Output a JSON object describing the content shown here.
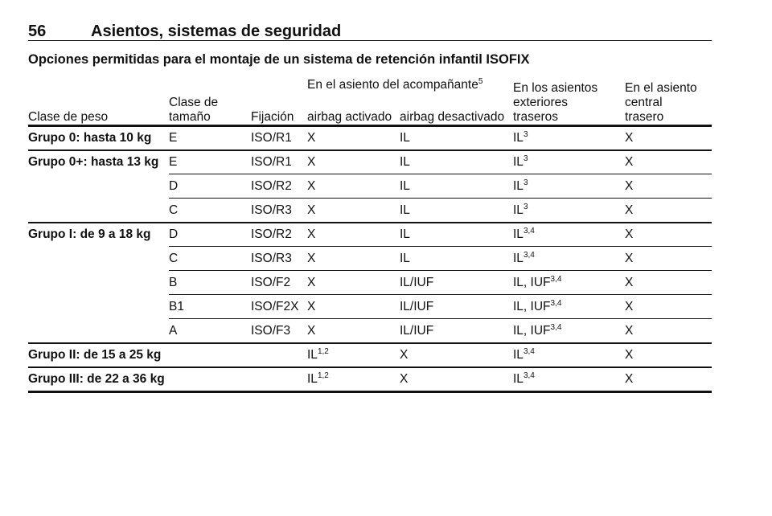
{
  "header": {
    "page_number": "56",
    "title": "Asientos, sistemas de seguridad"
  },
  "section_title": "Opciones permitidas para el montaje de un sistema de retención infantil ISOFIX",
  "table": {
    "span_header": {
      "text": "En el asiento del acompañante",
      "sup": "5"
    },
    "columns": [
      [
        "Clase de peso"
      ],
      [
        "Clase de",
        "tamaño"
      ],
      [
        "Fijación"
      ],
      [
        "airbag activado"
      ],
      [
        "airbag desactivado"
      ],
      [
        "En los asientos",
        "exteriores",
        "traseros"
      ],
      [
        "En el asiento",
        "central",
        "trasero"
      ]
    ],
    "groups": [
      {
        "label": "Grupo 0: hasta 10 kg",
        "rows": [
          [
            "E",
            "ISO/R1",
            "X",
            "IL",
            {
              "text": "IL",
              "sup": "3"
            },
            "X"
          ]
        ]
      },
      {
        "label": "Grupo 0+: hasta 13 kg",
        "rows": [
          [
            "E",
            "ISO/R1",
            "X",
            "IL",
            {
              "text": "IL",
              "sup": "3"
            },
            "X"
          ],
          [
            "D",
            "ISO/R2",
            "X",
            "IL",
            {
              "text": "IL",
              "sup": "3"
            },
            "X"
          ],
          [
            "C",
            "ISO/R3",
            "X",
            "IL",
            {
              "text": "IL",
              "sup": "3"
            },
            "X"
          ]
        ]
      },
      {
        "label": "Grupo I: de 9 a 18 kg",
        "rows": [
          [
            "D",
            "ISO/R2",
            "X",
            "IL",
            {
              "text": "IL",
              "sup": "3,4"
            },
            "X"
          ],
          [
            "C",
            "ISO/R3",
            "X",
            "IL",
            {
              "text": "IL",
              "sup": "3,4"
            },
            "X"
          ],
          [
            "B",
            "ISO/F2",
            "X",
            "IL/IUF",
            {
              "text": "IL, IUF",
              "sup": "3,4"
            },
            "X"
          ],
          [
            "B1",
            "ISO/F2X",
            "X",
            "IL/IUF",
            {
              "text": "IL, IUF",
              "sup": "3,4"
            },
            "X"
          ],
          [
            "A",
            "ISO/F3",
            "X",
            "IL/IUF",
            {
              "text": "IL, IUF",
              "sup": "3,4"
            },
            "X"
          ]
        ]
      },
      {
        "label": "Grupo II: de 15 a 25 kg",
        "rows": [
          [
            null,
            null,
            {
              "text": "IL",
              "sup": "1,2"
            },
            "X",
            {
              "text": "IL",
              "sup": "3,4"
            },
            "X"
          ]
        ]
      },
      {
        "label": "Grupo III: de 22 a 36 kg",
        "rows": [
          [
            null,
            null,
            {
              "text": "IL",
              "sup": "1,2"
            },
            "X",
            {
              "text": "IL",
              "sup": "3,4"
            },
            "X"
          ]
        ]
      }
    ]
  }
}
